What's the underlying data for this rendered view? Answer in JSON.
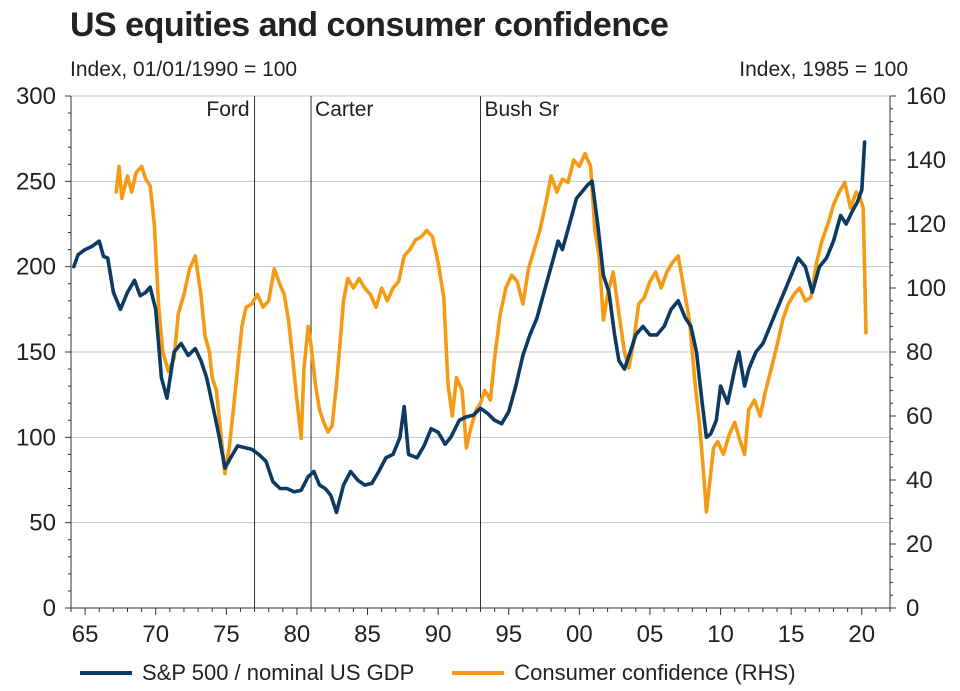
{
  "chart_data": {
    "type": "line",
    "title": "US equities and consumer confidence",
    "left_axis_label": "Index, 01/01/1990 = 100",
    "right_axis_label": "Index, 1985 = 100",
    "x_range": [
      1964,
      2022
    ],
    "x_ticks": [
      {
        "year": 1965,
        "label": "65"
      },
      {
        "year": 1970,
        "label": "70"
      },
      {
        "year": 1975,
        "label": "75"
      },
      {
        "year": 1980,
        "label": "80"
      },
      {
        "year": 1985,
        "label": "85"
      },
      {
        "year": 1990,
        "label": "90"
      },
      {
        "year": 1995,
        "label": "95"
      },
      {
        "year": 2000,
        "label": "00"
      },
      {
        "year": 2005,
        "label": "05"
      },
      {
        "year": 2010,
        "label": "10"
      },
      {
        "year": 2015,
        "label": "15"
      },
      {
        "year": 2020,
        "label": "20"
      }
    ],
    "left_ylim": [
      0,
      300
    ],
    "left_ticks": [
      0,
      50,
      100,
      150,
      200,
      250,
      300
    ],
    "right_ylim": [
      0,
      160
    ],
    "right_ticks": [
      0,
      20,
      40,
      60,
      80,
      100,
      120,
      140,
      160
    ],
    "grid": "horizontal",
    "legend_placement": "bottom",
    "presidencies": [
      {
        "label": "Ford",
        "x": 1977.0
      },
      {
        "label": "Carter",
        "x": 1981.0
      },
      {
        "label": "Bush Sr",
        "x": 1993.0
      }
    ],
    "series": [
      {
        "name": "S&P 500 / nominal US GDP",
        "color": "#0b3a63",
        "axis": "left",
        "x": [
          1964.2,
          1964.5,
          1965.0,
          1965.5,
          1966.0,
          1966.3,
          1966.6,
          1967.0,
          1967.5,
          1968.0,
          1968.5,
          1968.9,
          1969.3,
          1969.6,
          1970.0,
          1970.4,
          1970.8,
          1971.3,
          1971.8,
          1972.3,
          1972.8,
          1973.2,
          1973.6,
          1974.0,
          1974.5,
          1974.9,
          1975.3,
          1975.8,
          1976.3,
          1976.8,
          1977.3,
          1977.8,
          1978.3,
          1978.8,
          1979.3,
          1979.8,
          1980.3,
          1980.8,
          1981.2,
          1981.6,
          1982.0,
          1982.4,
          1982.8,
          1983.3,
          1983.8,
          1984.3,
          1984.8,
          1985.3,
          1985.8,
          1986.3,
          1986.8,
          1987.3,
          1987.6,
          1987.9,
          1988.5,
          1989.0,
          1989.5,
          1990.0,
          1990.5,
          1990.9,
          1991.5,
          1992.0,
          1992.5,
          1993.0,
          1993.5,
          1994.0,
          1994.5,
          1995.0,
          1995.5,
          1996.0,
          1996.5,
          1997.0,
          1997.5,
          1998.0,
          1998.5,
          1998.8,
          1999.3,
          1999.8,
          2000.3,
          2000.6,
          2000.9,
          2001.3,
          2001.7,
          2002.1,
          2002.5,
          2002.8,
          2003.2,
          2003.6,
          2004.0,
          2004.5,
          2005.0,
          2005.5,
          2006.0,
          2006.5,
          2007.0,
          2007.5,
          2007.9,
          2008.3,
          2008.7,
          2009.0,
          2009.3,
          2009.7,
          2010.0,
          2010.5,
          2011.0,
          2011.3,
          2011.7,
          2012.0,
          2012.5,
          2013.0,
          2013.5,
          2014.0,
          2014.5,
          2015.0,
          2015.5,
          2016.0,
          2016.5,
          2017.0,
          2017.5,
          2018.0,
          2018.5,
          2018.9,
          2019.3,
          2019.7,
          2020.0,
          2020.2
        ],
        "values": [
          200,
          207,
          210,
          212,
          215,
          206,
          205,
          185,
          175,
          185,
          192,
          183,
          185,
          188,
          175,
          135,
          123,
          150,
          155,
          148,
          152,
          145,
          135,
          120,
          100,
          82,
          88,
          95,
          94,
          93,
          90,
          86,
          74,
          70,
          70,
          68,
          69,
          77,
          80,
          72,
          70,
          66,
          56,
          72,
          80,
          75,
          72,
          73,
          80,
          88,
          90,
          100,
          118,
          90,
          88,
          95,
          105,
          103,
          96,
          100,
          110,
          112,
          113,
          117,
          114,
          110,
          108,
          115,
          130,
          148,
          160,
          170,
          185,
          200,
          215,
          210,
          225,
          240,
          245,
          248,
          250,
          225,
          195,
          185,
          160,
          145,
          140,
          150,
          160,
          165,
          160,
          160,
          165,
          175,
          180,
          170,
          165,
          150,
          120,
          100,
          102,
          110,
          130,
          120,
          140,
          150,
          130,
          140,
          150,
          155,
          165,
          175,
          185,
          195,
          205,
          200,
          185,
          200,
          205,
          215,
          230,
          225,
          232,
          238,
          245,
          273
        ]
      },
      {
        "name": "Consumer confidence (RHS)",
        "color": "#f59a14",
        "axis": "right",
        "x": [
          1967.2,
          1967.4,
          1967.6,
          1968.0,
          1968.3,
          1968.6,
          1969.0,
          1969.3,
          1969.6,
          1969.9,
          1970.2,
          1970.5,
          1970.9,
          1971.3,
          1971.6,
          1972.0,
          1972.4,
          1972.8,
          1973.2,
          1973.5,
          1973.8,
          1974.0,
          1974.3,
          1974.6,
          1974.9,
          1975.2,
          1975.5,
          1975.8,
          1976.1,
          1976.4,
          1976.8,
          1977.2,
          1977.6,
          1978.0,
          1978.4,
          1978.8,
          1979.1,
          1979.4,
          1979.7,
          1980.0,
          1980.3,
          1980.5,
          1980.8,
          1981.0,
          1981.3,
          1981.6,
          1981.9,
          1982.2,
          1982.5,
          1982.8,
          1983.0,
          1983.3,
          1983.6,
          1984.0,
          1984.4,
          1984.8,
          1985.2,
          1985.6,
          1986.0,
          1986.4,
          1986.8,
          1987.2,
          1987.6,
          1988.0,
          1988.4,
          1988.8,
          1989.2,
          1989.6,
          1990.0,
          1990.4,
          1990.7,
          1991.0,
          1991.3,
          1991.7,
          1992.0,
          1992.3,
          1992.7,
          1993.0,
          1993.3,
          1993.7,
          1994.0,
          1994.4,
          1994.8,
          1995.2,
          1995.6,
          1996.0,
          1996.4,
          1996.8,
          1997.2,
          1997.6,
          1998.0,
          1998.4,
          1998.8,
          1999.2,
          1999.6,
          2000.0,
          2000.4,
          2000.8,
          2001.1,
          2001.4,
          2001.7,
          2002.0,
          2002.4,
          2002.8,
          2003.2,
          2003.5,
          2003.8,
          2004.2,
          2004.6,
          2005.0,
          2005.4,
          2005.8,
          2006.2,
          2006.6,
          2007.0,
          2007.4,
          2007.8,
          2008.2,
          2008.5,
          2008.8,
          2009.0,
          2009.2,
          2009.5,
          2009.8,
          2010.2,
          2010.6,
          2011.0,
          2011.4,
          2011.7,
          2012.0,
          2012.4,
          2012.8,
          2013.2,
          2013.6,
          2014.0,
          2014.4,
          2014.8,
          2015.2,
          2015.6,
          2016.0,
          2016.4,
          2016.8,
          2017.2,
          2017.6,
          2018.0,
          2018.4,
          2018.8,
          2019.2,
          2019.6,
          2019.9,
          2020.1,
          2020.3
        ],
        "values": [
          130,
          138,
          128,
          135,
          130,
          136,
          138,
          134,
          132,
          120,
          95,
          80,
          74,
          78,
          92,
          98,
          106,
          110,
          98,
          85,
          80,
          72,
          68,
          55,
          42,
          50,
          62,
          75,
          88,
          94,
          95,
          98,
          94,
          96,
          106,
          101,
          98,
          90,
          78,
          65,
          53,
          75,
          88,
          82,
          70,
          62,
          58,
          55,
          57,
          70,
          80,
          96,
          103,
          100,
          103,
          100,
          98,
          94,
          100,
          96,
          100,
          102,
          110,
          112,
          115,
          116,
          118,
          116,
          108,
          97,
          70,
          60,
          72,
          68,
          50,
          56,
          62,
          64,
          68,
          65,
          78,
          92,
          100,
          104,
          102,
          95,
          106,
          112,
          118,
          126,
          135,
          130,
          134,
          133,
          140,
          138,
          142,
          138,
          118,
          110,
          90,
          98,
          105,
          92,
          80,
          75,
          82,
          95,
          97,
          102,
          105,
          100,
          105,
          108,
          110,
          100,
          90,
          70,
          58,
          42,
          30,
          38,
          50,
          52,
          48,
          54,
          58,
          52,
          48,
          62,
          65,
          60,
          68,
          75,
          82,
          90,
          95,
          98,
          100,
          96,
          97,
          108,
          115,
          120,
          126,
          130,
          133,
          125,
          130,
          128,
          125,
          86
        ]
      }
    ]
  }
}
